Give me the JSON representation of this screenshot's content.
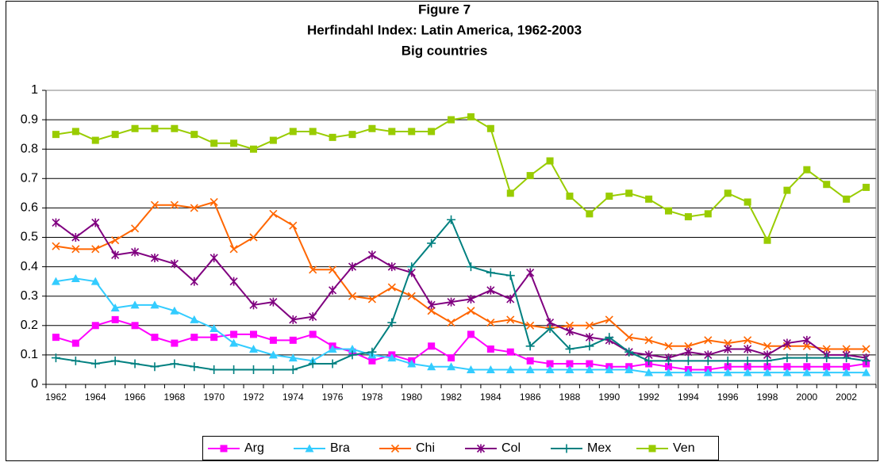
{
  "chart_data": {
    "type": "line",
    "title": "Figure 7",
    "subtitle": [
      "Herfindahl Index: Latin America, 1962-2003",
      "Big countries"
    ],
    "categories": [
      "1962",
      null,
      "1964",
      null,
      "1966",
      null,
      "1968",
      null,
      "1970",
      null,
      "1972",
      null,
      "1974",
      null,
      "1976",
      null,
      "1978",
      null,
      "1980",
      null,
      "1982",
      null,
      "1984",
      null,
      "1986",
      null,
      "1988",
      null,
      "1990",
      null,
      "1992",
      null,
      "1994",
      null,
      "1996",
      null,
      "1998",
      null,
      "2000",
      null,
      "2002",
      null
    ],
    "series": [
      {
        "name": "Arg",
        "color": "#ff00ff",
        "marker": "square",
        "values": [
          0.16,
          0.14,
          0.2,
          0.22,
          0.2,
          0.16,
          0.14,
          0.16,
          0.16,
          0.17,
          0.17,
          0.15,
          0.15,
          0.17,
          0.13,
          0.11,
          0.08,
          0.1,
          0.08,
          0.13,
          0.09,
          0.17,
          0.12,
          0.11,
          0.08,
          0.07,
          0.07,
          0.07,
          0.06,
          0.06,
          0.07,
          0.06,
          0.05,
          0.05,
          0.06,
          0.06,
          0.06,
          0.06,
          0.06,
          0.06,
          0.06,
          0.07
        ]
      },
      {
        "name": "Bra",
        "color": "#33ccff",
        "marker": "triangle",
        "values": [
          0.35,
          0.36,
          0.35,
          0.26,
          0.27,
          0.27,
          0.25,
          0.22,
          0.19,
          0.14,
          0.12,
          0.1,
          0.09,
          0.08,
          0.12,
          0.12,
          0.1,
          0.09,
          0.07,
          0.06,
          0.06,
          0.05,
          0.05,
          0.05,
          0.05,
          0.05,
          0.05,
          0.05,
          0.05,
          0.05,
          0.04,
          0.04,
          0.04,
          0.04,
          0.04,
          0.04,
          0.04,
          0.04,
          0.04,
          0.04,
          0.04,
          0.04
        ]
      },
      {
        "name": "Chi",
        "color": "#ff6600",
        "marker": "x",
        "values": [
          0.47,
          0.46,
          0.46,
          0.49,
          0.53,
          0.61,
          0.61,
          0.6,
          0.62,
          0.46,
          0.5,
          0.58,
          0.54,
          0.39,
          0.39,
          0.3,
          0.29,
          0.33,
          0.3,
          0.25,
          0.21,
          0.25,
          0.21,
          0.22,
          0.2,
          0.19,
          0.2,
          0.2,
          0.22,
          0.16,
          0.15,
          0.13,
          0.13,
          0.15,
          0.14,
          0.15,
          0.13,
          0.13,
          0.13,
          0.12,
          0.12,
          0.12
        ]
      },
      {
        "name": "Col",
        "color": "#800080",
        "marker": "star",
        "values": [
          0.55,
          0.5,
          0.55,
          0.44,
          0.45,
          0.43,
          0.41,
          0.35,
          0.43,
          0.35,
          0.27,
          0.28,
          0.22,
          0.23,
          0.32,
          0.4,
          0.44,
          0.4,
          0.38,
          0.27,
          0.28,
          0.29,
          0.32,
          0.29,
          0.38,
          0.21,
          0.18,
          0.16,
          0.15,
          0.11,
          0.1,
          0.09,
          0.11,
          0.1,
          0.12,
          0.12,
          0.1,
          0.14,
          0.15,
          0.1,
          0.1,
          0.09
        ]
      },
      {
        "name": "Mex",
        "color": "#008080",
        "marker": "plus",
        "values": [
          0.09,
          0.08,
          0.07,
          0.08,
          0.07,
          0.06,
          0.07,
          0.06,
          0.05,
          0.05,
          0.05,
          0.05,
          0.05,
          0.07,
          0.07,
          0.1,
          0.11,
          0.21,
          0.4,
          0.48,
          0.56,
          0.4,
          0.38,
          0.37,
          0.13,
          0.19,
          0.12,
          0.13,
          0.16,
          0.11,
          0.08,
          0.08,
          0.08,
          0.08,
          0.08,
          0.08,
          0.08,
          0.09,
          0.09,
          0.09,
          0.09,
          0.08
        ]
      },
      {
        "name": "Ven",
        "color": "#99cc00",
        "marker": "square",
        "values": [
          0.85,
          0.86,
          0.83,
          0.85,
          0.87,
          0.87,
          0.87,
          0.85,
          0.82,
          0.82,
          0.8,
          0.83,
          0.86,
          0.86,
          0.84,
          0.85,
          0.87,
          0.86,
          0.86,
          0.86,
          0.9,
          0.91,
          0.87,
          0.65,
          0.71,
          0.76,
          0.64,
          0.58,
          0.64,
          0.65,
          0.63,
          0.59,
          0.57,
          0.58,
          0.65,
          0.62,
          0.49,
          0.66,
          0.73,
          0.68,
          0.63,
          0.67
        ]
      }
    ],
    "ylim": [
      0,
      1
    ],
    "yticks": [
      0,
      0.1,
      0.2,
      0.3,
      0.4,
      0.5,
      0.6,
      0.7,
      0.8,
      0.9,
      1
    ],
    "grid": true,
    "legend": "bottom"
  }
}
